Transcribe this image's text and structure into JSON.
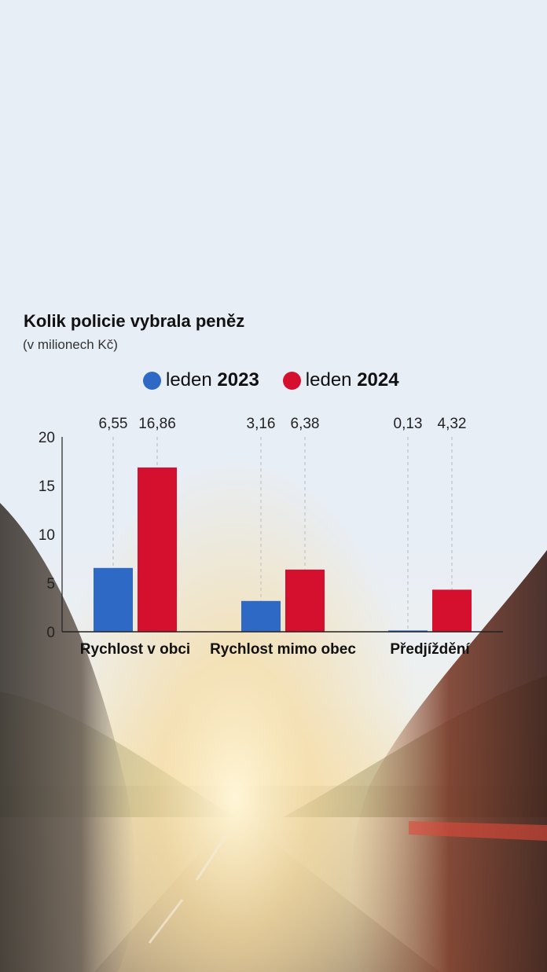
{
  "colors": {
    "series_2023": "#2f69c6",
    "series_2024": "#d5102e"
  },
  "chart_data": {
    "type": "bar",
    "title": "Kolik policie vybrala peněz",
    "subtitle": "(v milionech Kč)",
    "categories": [
      "Rychlost v obci",
      "Rychlost mimo obec",
      "Předjíždění"
    ],
    "series": [
      {
        "name": "leden 2023",
        "prefix": "leden",
        "year": "2023",
        "color": "#2f69c6",
        "values": [
          6.55,
          3.16,
          0.13
        ],
        "labels": [
          "6,55",
          "3,16",
          "0,13"
        ]
      },
      {
        "name": "leden 2024",
        "prefix": "leden",
        "year": "2024",
        "color": "#d5102e",
        "values": [
          16.86,
          6.38,
          4.32
        ],
        "labels": [
          "16,86",
          "6,38",
          "4,32"
        ]
      }
    ],
    "yticks": [
      "0",
      "5",
      "10",
      "15",
      "20"
    ],
    "ylim": [
      0,
      20
    ],
    "grid": false,
    "legend_position": "top"
  }
}
